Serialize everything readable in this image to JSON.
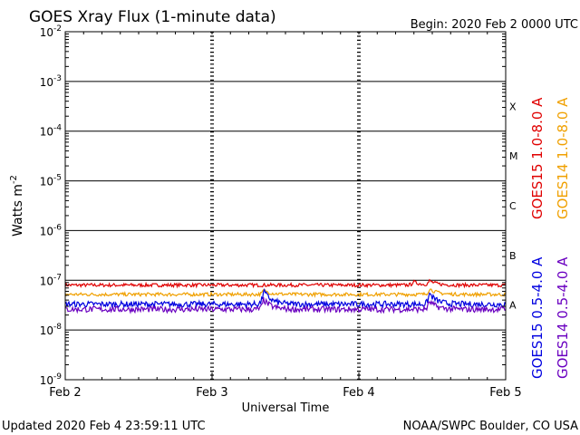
{
  "chart_data": {
    "type": "line",
    "title": "GOES Xray Flux (1-minute data)",
    "begin_label": "Begin:  2020 Feb 2 0000 UTC",
    "xlabel": "Universal Time",
    "ylabel_base": "Watts m",
    "ylabel_exp": "-2",
    "y_scale": "log",
    "ylim": [
      1e-09,
      0.01
    ],
    "x_ticks": [
      "Feb 2",
      "Feb 3",
      "Feb 4",
      "Feb 5"
    ],
    "y_ticks": [
      {
        "base": "10",
        "exp": "-9"
      },
      {
        "base": "10",
        "exp": "-8"
      },
      {
        "base": "10",
        "exp": "-7"
      },
      {
        "base": "10",
        "exp": "-6"
      },
      {
        "base": "10",
        "exp": "-5"
      },
      {
        "base": "10",
        "exp": "-4"
      },
      {
        "base": "10",
        "exp": "-3"
      },
      {
        "base": "10",
        "exp": "-2"
      }
    ],
    "flare_classes": [
      "A",
      "B",
      "C",
      "M",
      "X"
    ],
    "grid": true,
    "series": [
      {
        "name": "GOES15 1.0-8.0 A",
        "color": "#e00000",
        "level": 8e-08,
        "bumps": [
          {
            "day": 2.37,
            "amp": 0.07
          },
          {
            "day": 2.48,
            "amp": 0.08
          }
        ]
      },
      {
        "name": "GOES14 1.0-8.0 A",
        "color": "#f0a000",
        "level": 5.2e-08,
        "bumps": [
          {
            "day": 1.35,
            "amp": 0.08
          },
          {
            "day": 2.48,
            "amp": 0.12
          }
        ]
      },
      {
        "name": "GOES15 0.5-4.0 A",
        "color": "#0000e0",
        "level": 3.3e-08,
        "bumps": [
          {
            "day": 1.35,
            "amp": 0.28
          },
          {
            "day": 2.48,
            "amp": 0.22
          }
        ]
      },
      {
        "name": "GOES14 0.5-4.0 A",
        "color": "#6a00c0",
        "level": 2.6e-08,
        "bumps": [
          {
            "day": 1.35,
            "amp": 0.2
          },
          {
            "day": 2.48,
            "amp": 0.16
          }
        ]
      }
    ]
  },
  "footer": {
    "updated": "Updated 2020 Feb  4 23:59:11 UTC",
    "credit": "NOAA/SWPC Boulder, CO USA"
  }
}
